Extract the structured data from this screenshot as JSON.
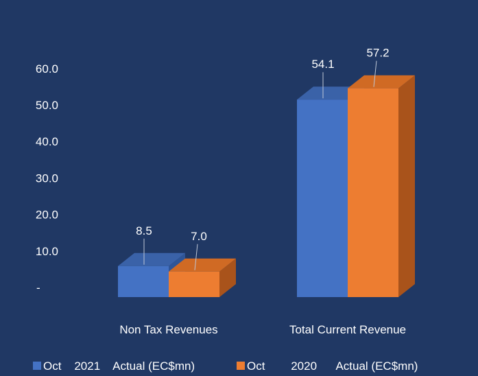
{
  "chart_data": {
    "type": "bar",
    "style": "3d-clustered-column",
    "categories": [
      "Non Tax Revenues",
      "Total Current Revenue"
    ],
    "series": [
      {
        "name": "Oct 2021 Actual (EC$mn)",
        "legend_label": "Oct    2021    Actual (EC$mn)",
        "values": [
          8.5,
          54.1
        ],
        "color": "#4472C4"
      },
      {
        "name": "Oct 2020 Actual (EC$mn)",
        "legend_label": "Oct        2020      Actual (EC$mn)",
        "values": [
          7.0,
          57.2
        ],
        "color": "#ED7D31"
      }
    ],
    "data_labels": [
      [
        "8.5",
        "54.1"
      ],
      [
        "7.0",
        "57.2"
      ]
    ],
    "yticks": [
      0,
      10,
      20,
      30,
      40,
      50,
      60
    ],
    "ytick_labels": [
      "-",
      "10.0",
      "20.0",
      "30.0",
      "40.0",
      "50.0",
      "60.0"
    ],
    "ylim": [
      0,
      60
    ],
    "grid": false,
    "legend_position": "bottom",
    "title": "",
    "xlabel": "",
    "ylabel": ""
  },
  "colors": {
    "background": "#203864",
    "text": "#ffffff",
    "series1_front": "#4472C4",
    "series1_top": "#3A62A8",
    "series1_side": "#2F5597",
    "series2_front": "#ED7D31",
    "series2_top": "#D06A24",
    "series2_side": "#A9531B"
  }
}
